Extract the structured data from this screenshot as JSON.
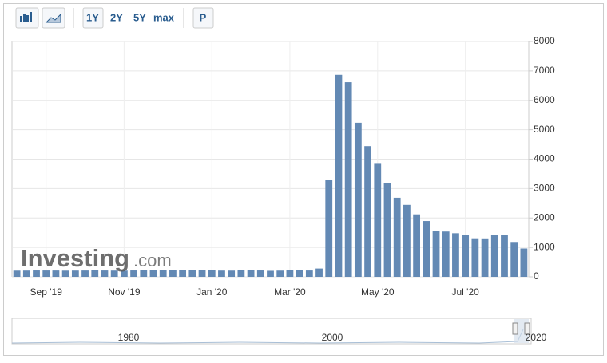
{
  "toolbar": {
    "ranges": [
      "1Y",
      "2Y",
      "5Y",
      "max"
    ],
    "print": "P"
  },
  "watermark": {
    "brand": "Investing",
    "suffix": ".com"
  },
  "chart_data": {
    "type": "bar",
    "color": "#6389b4",
    "categories": [
      null,
      null,
      null,
      "Sep '19",
      null,
      null,
      null,
      null,
      null,
      null,
      null,
      "Nov '19",
      null,
      null,
      null,
      null,
      null,
      null,
      null,
      null,
      "Jan '20",
      null,
      null,
      null,
      null,
      null,
      null,
      null,
      "Mar '20",
      null,
      null,
      null,
      null,
      null,
      null,
      null,
      null,
      "May '20",
      null,
      null,
      null,
      null,
      null,
      null,
      null,
      null,
      "Jul '20",
      null,
      null,
      null,
      null,
      null,
      null
    ],
    "values": [
      210,
      212,
      216,
      215,
      214,
      210,
      212,
      214,
      218,
      215,
      212,
      211,
      216,
      218,
      220,
      222,
      228,
      225,
      232,
      224,
      220,
      212,
      211,
      218,
      223,
      216,
      205,
      211,
      218,
      219,
      215,
      282,
      3307,
      6867,
      6615,
      5237,
      4442,
      3867,
      3176,
      2687,
      2446,
      2123,
      1897,
      1566,
      1540,
      1482,
      1413,
      1310,
      1307,
      1422,
      1434,
      1186,
      963
    ],
    "ylim": [
      0,
      8000
    ],
    "yticks": [
      0,
      1000,
      2000,
      3000,
      4000,
      5000,
      6000,
      7000,
      8000
    ],
    "grid": true
  },
  "navigator": {
    "labels": [
      "1980",
      "2000",
      "2020"
    ]
  }
}
